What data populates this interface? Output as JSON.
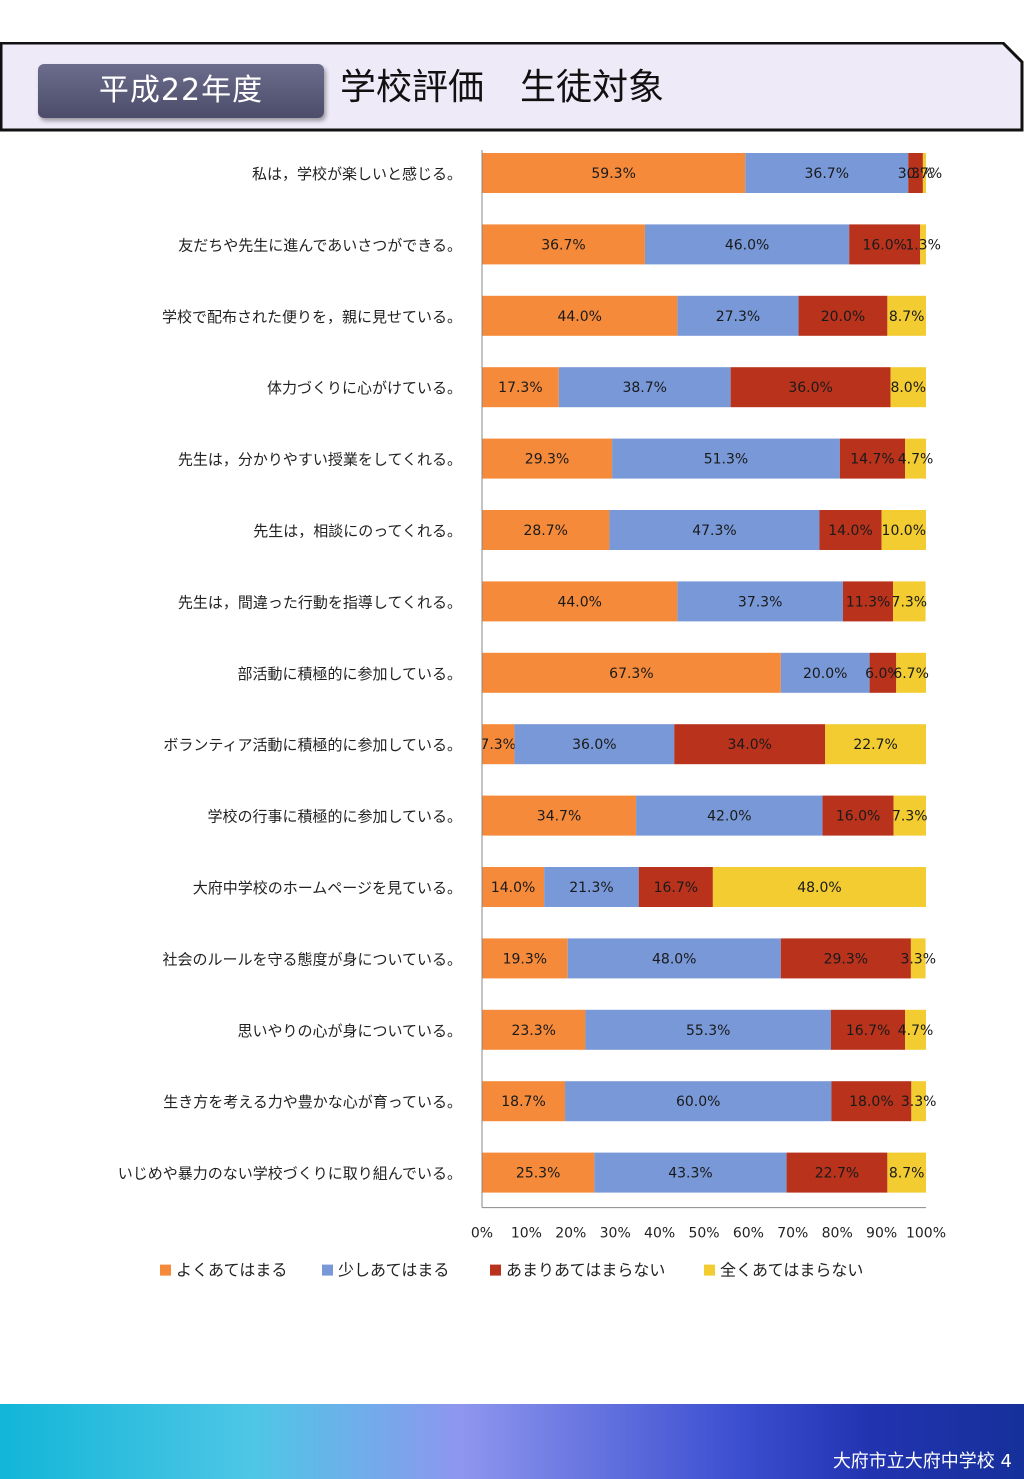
{
  "header": {
    "badge": "平成22年度",
    "title": "学校評価　生徒対象"
  },
  "footer": {
    "text": "大府市立大府中学校 4"
  },
  "chart_data": {
    "type": "bar",
    "orientation": "horizontal",
    "stacked": true,
    "percent": true,
    "categories": [
      "私は，学校が楽しいと感じる。",
      "友だちや先生に進んであいさつができる。",
      "学校で配布された便りを，親に見せている。",
      "体力づくりに心がけている。",
      "先生は，分かりやすい授業をしてくれる。",
      "先生は，相談にのってくれる。",
      "先生は，間違った行動を指導してくれる。",
      "部活動に積極的に参加している。",
      "ボランティア活動に積極的に参加している。",
      "学校の行事に積極的に参加している。",
      "大府中学校のホームページを見ている。",
      "社会のルールを守る態度が身についている。",
      "思いやりの心が身についている。",
      "生き方を考える力や豊かな心が育っている。",
      "いじめや暴力のない学校づくりに取り組んでいる。"
    ],
    "series": [
      {
        "name": "よくあてはまる",
        "color": "#f58a3a",
        "values": [
          59.3,
          36.7,
          44.0,
          17.3,
          29.3,
          28.7,
          44.0,
          67.3,
          7.3,
          34.7,
          14.0,
          19.3,
          23.3,
          18.7,
          25.3
        ]
      },
      {
        "name": "少しあてはまる",
        "color": "#7898d8",
        "values": [
          36.7,
          46.0,
          27.3,
          38.7,
          51.3,
          47.3,
          37.3,
          20.0,
          36.0,
          42.0,
          21.3,
          48.0,
          55.3,
          60.0,
          43.3
        ]
      },
      {
        "name": "あまりあてはまらない",
        "color": "#b8321c",
        "values": [
          3.3,
          16.0,
          20.0,
          36.0,
          14.7,
          14.0,
          11.3,
          6.0,
          34.0,
          16.0,
          16.7,
          29.3,
          16.7,
          18.0,
          22.7
        ]
      },
      {
        "name": "全くあてはまらない",
        "color": "#f2cc30",
        "values": [
          0.7,
          1.3,
          8.7,
          8.0,
          4.7,
          10.0,
          7.3,
          6.7,
          22.7,
          7.3,
          48.0,
          3.3,
          4.7,
          3.3,
          8.7
        ]
      }
    ],
    "xlim": [
      0,
      100
    ],
    "xticks": [
      "0%",
      "10%",
      "20%",
      "30%",
      "40%",
      "50%",
      "60%",
      "70%",
      "80%",
      "90%",
      "100%"
    ],
    "legend_position": "bottom",
    "grid": false
  }
}
